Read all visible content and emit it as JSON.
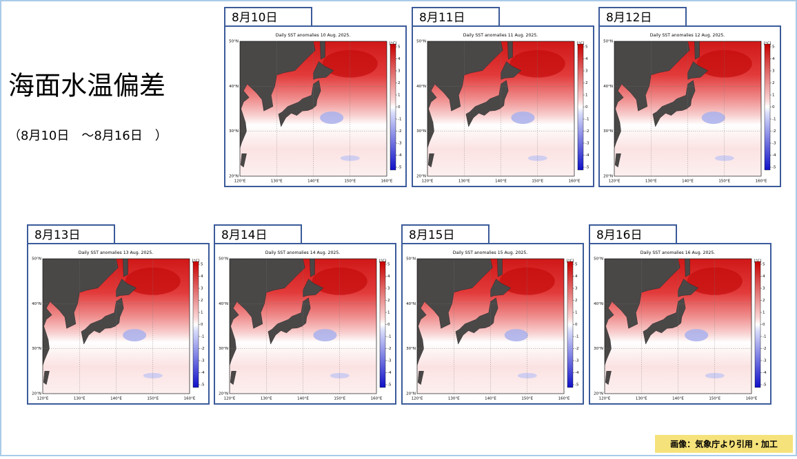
{
  "title": "海面水温偏差",
  "subtitle": "（8月10日　～8月16日　）",
  "map": {
    "lat_lim": [
      20,
      50
    ],
    "lon_lim": [
      120,
      160
    ],
    "lat_ticks": [
      {
        "value": 50,
        "label": "50°N"
      },
      {
        "value": 40,
        "label": "40°N"
      },
      {
        "value": 30,
        "label": "30°N"
      },
      {
        "value": 20,
        "label": "20°N"
      }
    ],
    "lon_ticks": [
      {
        "value": 120,
        "label": "120°E"
      },
      {
        "value": 130,
        "label": "130°E"
      },
      {
        "value": 140,
        "label": "140°E"
      },
      {
        "value": 150,
        "label": "150°E"
      },
      {
        "value": 160,
        "label": "160°E"
      }
    ],
    "colorbar_unit": "[°C]",
    "colorbar_ticks": [
      5,
      4,
      3,
      2,
      1,
      0,
      -1,
      -2,
      -3,
      -4,
      -5
    ]
  },
  "panels": [
    {
      "date": "8月10日",
      "map_title": "Daily SST anomalies 10 Aug. 2025."
    },
    {
      "date": "8月11日",
      "map_title": "Daily SST anomalies 11 Aug. 2025."
    },
    {
      "date": "8月12日",
      "map_title": "Daily SST anomalies 12 Aug. 2025."
    },
    {
      "date": "8月13日",
      "map_title": "Daily SST anomalies 13 Aug. 2025."
    },
    {
      "date": "8月14日",
      "map_title": "Daily SST anomalies 14 Aug. 2025."
    },
    {
      "date": "8月15日",
      "map_title": "Daily SST anomalies 15 Aug. 2025."
    },
    {
      "date": "8月16日",
      "map_title": "Daily SST anomalies 16 Aug. 2025."
    }
  ],
  "credit": "画像：気象庁より引用・加工"
}
